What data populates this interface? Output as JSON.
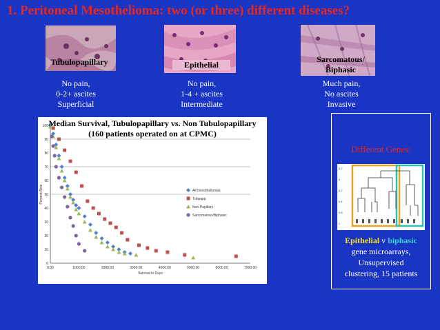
{
  "title": "1.  Peritoneal Mesothelioma:  two (or three)  different diseases?",
  "subtypes": [
    {
      "label": "Tubulopapillary",
      "desc": [
        "No pain,",
        "0-2+ ascites",
        "Superficial"
      ]
    },
    {
      "label": "Epithelial",
      "desc": [
        "No pain,",
        "1-4 + ascites",
        "Intermediate"
      ]
    },
    {
      "label": "Sarcomatous/ Biphasic",
      "desc": [
        "Much  pain,",
        "No ascites",
        "Invasive"
      ]
    }
  ],
  "chart": {
    "title_line1": "Median Survival, Tubulopapillary vs. Non Tubulopapillary",
    "title_line2": "(160 patients operated on at CPMC)"
  },
  "chart_data": {
    "type": "scatter",
    "xlabel": "Survival in Days",
    "ylabel": "Percent Alive",
    "xlim": [
      0,
      7000
    ],
    "ylim": [
      0,
      100
    ],
    "x_ticks": [
      "0.00",
      "1000.00",
      "2000.00",
      "3000.00",
      "4000.00",
      "5000.00",
      "6000.00",
      "7000.00"
    ],
    "y_ticks": [
      "0",
      "10",
      "20",
      "30",
      "40",
      "50",
      "60",
      "70",
      "80",
      "90",
      "100"
    ],
    "legend_position": "right",
    "series": [
      {
        "name": "All mesotheliomas",
        "color": "#4f7fd0",
        "marker": "diamond",
        "points": [
          [
            0,
            100
          ],
          [
            100,
            94
          ],
          [
            200,
            86
          ],
          [
            300,
            78
          ],
          [
            400,
            70
          ],
          [
            500,
            62
          ],
          [
            600,
            56
          ],
          [
            700,
            50
          ],
          [
            800,
            46
          ],
          [
            900,
            42
          ],
          [
            1000,
            40
          ],
          [
            1200,
            34
          ],
          [
            1400,
            28
          ],
          [
            1600,
            22
          ],
          [
            1800,
            18
          ],
          [
            2000,
            15
          ],
          [
            2200,
            12
          ],
          [
            2400,
            10
          ],
          [
            2600,
            8
          ],
          [
            2800,
            7
          ]
        ]
      },
      {
        "name": "Tubpapp",
        "color": "#c0504d",
        "marker": "square",
        "points": [
          [
            100,
            98
          ],
          [
            300,
            90
          ],
          [
            500,
            82
          ],
          [
            700,
            74
          ],
          [
            900,
            66
          ],
          [
            1100,
            56
          ],
          [
            1300,
            45
          ],
          [
            1500,
            40
          ],
          [
            1700,
            36
          ],
          [
            1900,
            32
          ],
          [
            2100,
            29
          ],
          [
            2300,
            26
          ],
          [
            2500,
            22
          ],
          [
            2700,
            17
          ],
          [
            3100,
            13
          ],
          [
            3400,
            11
          ],
          [
            3700,
            9
          ],
          [
            4100,
            8
          ],
          [
            4700,
            6
          ],
          [
            6500,
            5
          ]
        ]
      },
      {
        "name": "Non-Papillary",
        "color": "#9bbb59",
        "marker": "triangle",
        "points": [
          [
            0,
            99
          ],
          [
            100,
            92
          ],
          [
            200,
            84
          ],
          [
            300,
            76
          ],
          [
            400,
            67
          ],
          [
            500,
            60
          ],
          [
            600,
            54
          ],
          [
            700,
            48
          ],
          [
            800,
            44
          ],
          [
            900,
            39
          ],
          [
            1000,
            36
          ],
          [
            1200,
            30
          ],
          [
            1400,
            24
          ],
          [
            1600,
            19
          ],
          [
            1800,
            15
          ],
          [
            2000,
            12
          ],
          [
            2200,
            10
          ],
          [
            2400,
            8
          ],
          [
            2600,
            7
          ],
          [
            3000,
            6
          ],
          [
            5000,
            4
          ]
        ]
      },
      {
        "name": "Sarcomatous/Biphasic",
        "color": "#7f64a2",
        "marker": "circle",
        "points": [
          [
            50,
            92
          ],
          [
            100,
            85
          ],
          [
            150,
            78
          ],
          [
            200,
            70
          ],
          [
            300,
            62
          ],
          [
            400,
            55
          ],
          [
            500,
            48
          ],
          [
            600,
            41
          ],
          [
            700,
            33
          ],
          [
            800,
            27
          ],
          [
            900,
            20
          ],
          [
            1000,
            14
          ],
          [
            1200,
            9
          ]
        ]
      }
    ]
  },
  "genes": {
    "title": "Different Genes:",
    "line1_a": "Epithelial",
    "line1_b": " v ",
    "line1_c": "biphasic",
    "line2": "gene microarrays,",
    "line3": "Unsupervised",
    "line4": "clustering, 15 patients"
  },
  "colors": {
    "background": "#1a34c4",
    "title": "#e8261c",
    "epithelial": "#f7e11a",
    "biphasic": "#34d4c8"
  }
}
